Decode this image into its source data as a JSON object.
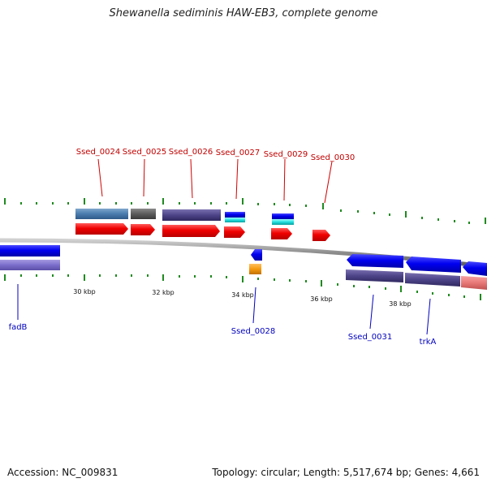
{
  "title": "Shewanella sediminis HAW-EB3, complete genome",
  "footer": {
    "accession": "Accession: NC_009831",
    "summary": "Topology: circular; Length: 5,517,674 bp; Genes: 4,661"
  },
  "colors": {
    "backbone": "#8a8a8a",
    "tick": "#1f8a1f",
    "forward_label": "#c00000",
    "reverse_label": "#0000c0"
  },
  "scale": {
    "labels": [
      {
        "text": "30 kbp",
        "kbp": 30
      },
      {
        "text": "32 kbp",
        "kbp": 32
      },
      {
        "text": "34 kbp",
        "kbp": 34
      },
      {
        "text": "36 kbp",
        "kbp": 36
      },
      {
        "text": "38 kbp",
        "kbp": 38
      }
    ]
  },
  "genes": {
    "forward": [
      {
        "label": "Ssed_0024"
      },
      {
        "label": "Ssed_0025"
      },
      {
        "label": "Ssed_0026"
      },
      {
        "label": "Ssed_0027"
      },
      {
        "label": "Ssed_0029"
      },
      {
        "label": "Ssed_0030"
      }
    ],
    "reverse": [
      {
        "label": "fadB"
      },
      {
        "label": "Ssed_0028"
      },
      {
        "label": "Ssed_0031"
      },
      {
        "label": "trkA"
      }
    ]
  }
}
